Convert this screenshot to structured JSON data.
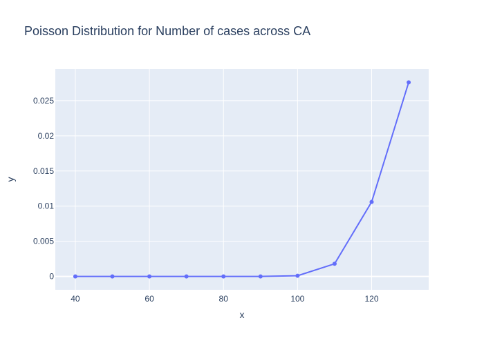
{
  "chart_data": {
    "type": "line",
    "title": "Poisson Distribution for Number of cases across CA",
    "xlabel": "x",
    "ylabel": "y",
    "x": [
      40,
      50,
      60,
      70,
      80,
      90,
      100,
      110,
      120,
      130
    ],
    "series": [
      {
        "values": [
          0,
          0,
          0,
          0,
          0,
          0,
          0.0001,
          0.0018,
          0.0106,
          0.0276
        ],
        "color": "#636efa"
      }
    ],
    "xlim": [
      34.6,
      135.4
    ],
    "ylim": [
      -0.0019,
      0.0295
    ],
    "x_ticks": [
      40,
      60,
      80,
      100,
      120
    ],
    "x_tick_labels": [
      "40",
      "60",
      "80",
      "100",
      "120"
    ],
    "y_ticks": [
      0,
      0.005,
      0.01,
      0.015,
      0.02,
      0.025
    ],
    "y_tick_labels": [
      "0",
      "0.005",
      "0.01",
      "0.015",
      "0.02",
      "0.025"
    ],
    "grid": true,
    "plot_background": "#e5ecf6",
    "grid_color": "#ffffff"
  }
}
